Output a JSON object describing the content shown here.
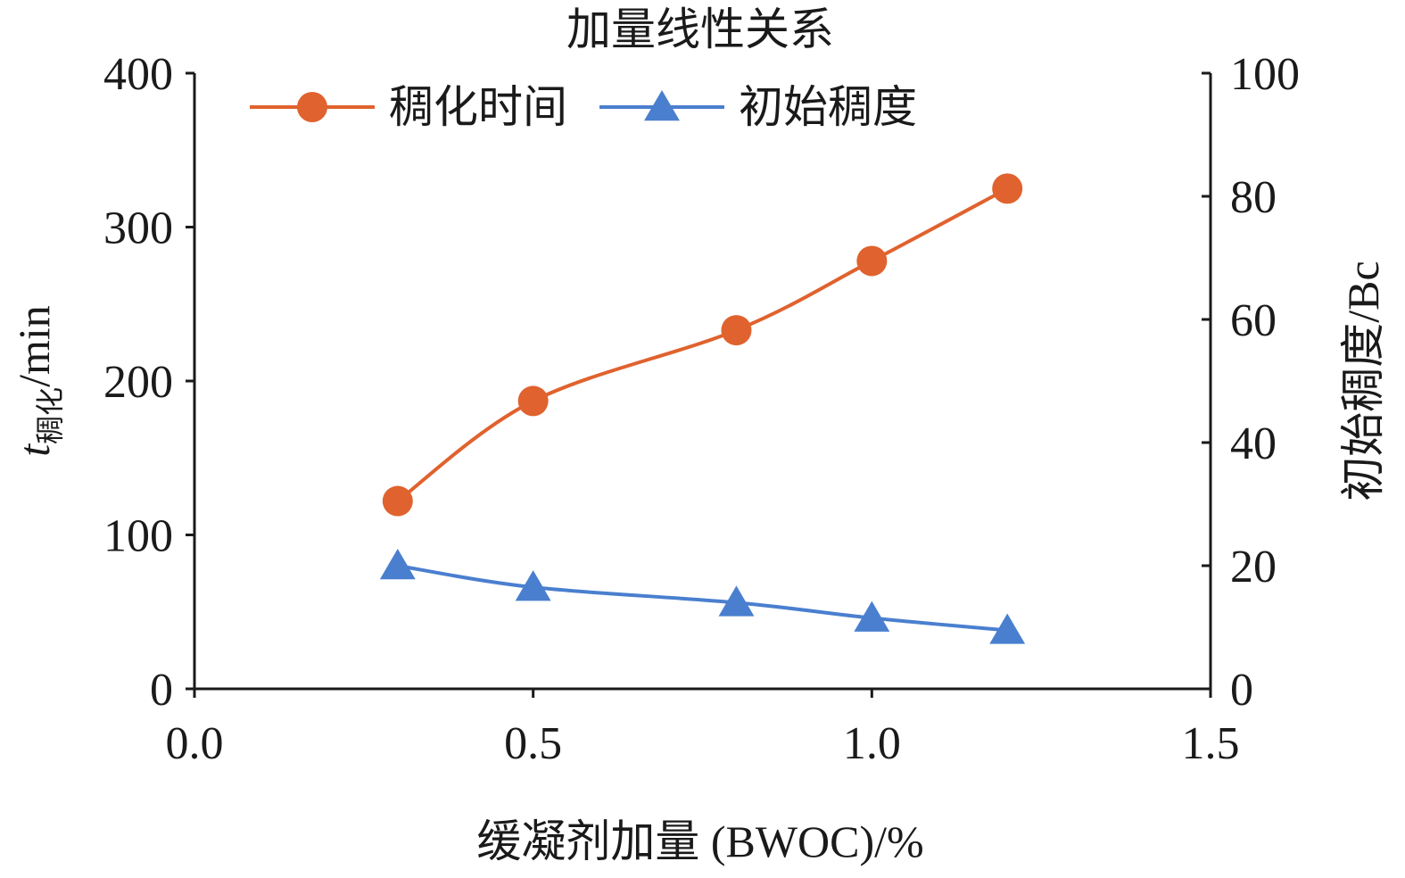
{
  "chart_data": {
    "type": "line",
    "title": "加量线性关系",
    "x": [
      0.3,
      0.5,
      0.8,
      1.0,
      1.2
    ],
    "xlabel": "缓凝剂加量 (BWOC)/%",
    "xlim": [
      0.0,
      1.5
    ],
    "xticks": [
      "0.0",
      "0.5",
      "1.0",
      "1.5"
    ],
    "ylabel_left": {
      "main": "t",
      "sub": "稠化",
      "unit": "/min"
    },
    "ylim_left": [
      0,
      400
    ],
    "yticks_left": [
      "0",
      "100",
      "200",
      "300",
      "400"
    ],
    "ylabel_right": "初始稠度/Bc",
    "ylim_right": [
      0,
      100
    ],
    "yticks_right": [
      "0",
      "20",
      "40",
      "60",
      "80",
      "100"
    ],
    "legend_position": "top-left",
    "grid": false,
    "series": [
      {
        "name": "稠化时间",
        "axis": "left",
        "marker": "circle",
        "color": "#E0622E",
        "values": [
          122,
          187,
          233,
          278,
          325
        ]
      },
      {
        "name": "初始稠度",
        "axis": "right",
        "marker": "triangle",
        "color": "#4A7FCF",
        "values": [
          20,
          16.5,
          14,
          11.5,
          9.5
        ]
      }
    ]
  }
}
